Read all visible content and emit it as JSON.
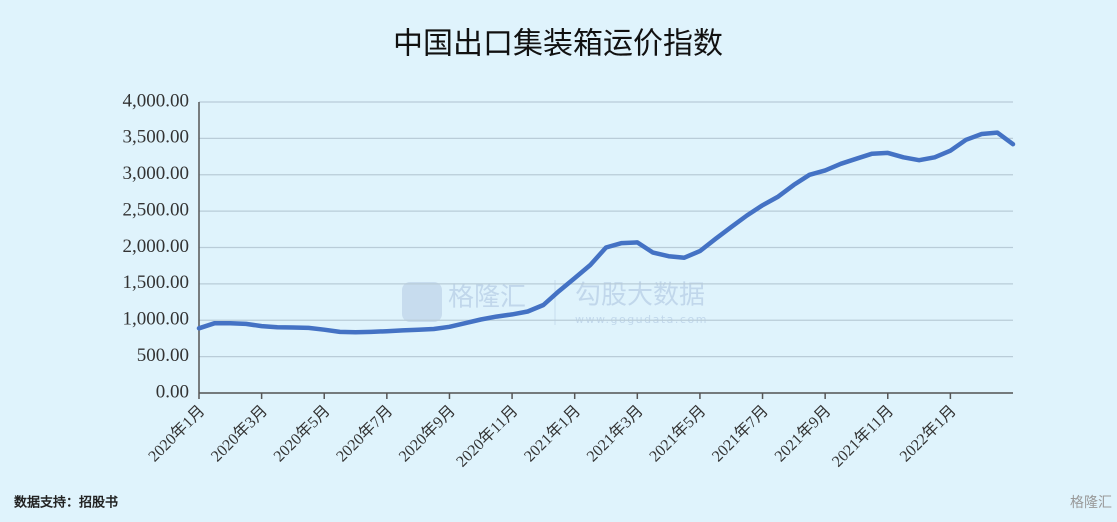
{
  "chart_data": {
    "type": "line",
    "title": "中国出口集装箱运价指数",
    "source": "数据支持：招股书",
    "watermark": {
      "brand": "格隆汇",
      "product": "勾股大数据",
      "url": "www.gogudata.com"
    },
    "corner_logo": "格隆汇",
    "xlim": [
      0,
      26
    ],
    "xticks": [
      {
        "value": 0,
        "label": "2020年1月"
      },
      {
        "value": 2,
        "label": "2020年3月"
      },
      {
        "value": 4,
        "label": "2020年5月"
      },
      {
        "value": 6,
        "label": "2020年7月"
      },
      {
        "value": 8,
        "label": "2020年9月"
      },
      {
        "value": 10,
        "label": "2020年11月"
      },
      {
        "value": 12,
        "label": "2021年1月"
      },
      {
        "value": 14,
        "label": "2021年3月"
      },
      {
        "value": 16,
        "label": "2021年5月"
      },
      {
        "value": 18,
        "label": "2021年7月"
      },
      {
        "value": 20,
        "label": "2021年9月"
      },
      {
        "value": 22,
        "label": "2021年11月"
      },
      {
        "value": 24,
        "label": "2022年1月"
      }
    ],
    "ylim": [
      0,
      4000
    ],
    "yticks": [
      {
        "value": 0,
        "label": "0.00"
      },
      {
        "value": 500,
        "label": "500.00"
      },
      {
        "value": 1000,
        "label": "1,000.00"
      },
      {
        "value": 1500,
        "label": "1,500.00"
      },
      {
        "value": 2000,
        "label": "2,000.00"
      },
      {
        "value": 2500,
        "label": "2,500.00"
      },
      {
        "value": 3000,
        "label": "3,000.00"
      },
      {
        "value": 3500,
        "label": "3,500.00"
      },
      {
        "value": 4000,
        "label": "4,000.00"
      }
    ],
    "grid": true,
    "series": [
      {
        "color": "#4472c4",
        "x": [
          0,
          0.5,
          1,
          1.5,
          2,
          2.5,
          3,
          3.5,
          4,
          4.5,
          5,
          5.5,
          6,
          6.5,
          7,
          7.5,
          8,
          8.5,
          9,
          9.5,
          10,
          10.5,
          11,
          11.5,
          12,
          12.5,
          13,
          13.5,
          14,
          14.5,
          15,
          15.5,
          16,
          16.5,
          17,
          17.5,
          18,
          18.5,
          19,
          19.5,
          20,
          20.5,
          21,
          21.5,
          22,
          22.5,
          23,
          23.5,
          24,
          24.5,
          25,
          25.5,
          26
        ],
        "values": [
          890,
          960,
          960,
          950,
          920,
          905,
          900,
          895,
          870,
          840,
          835,
          840,
          850,
          860,
          870,
          880,
          910,
          960,
          1010,
          1050,
          1080,
          1120,
          1210,
          1400,
          1580,
          1760,
          2000,
          2060,
          2070,
          1930,
          1880,
          1860,
          1950,
          2120,
          2280,
          2440,
          2580,
          2700,
          2860,
          3000,
          3060,
          3150,
          3220,
          3290,
          3300,
          3240,
          3200,
          3240,
          3330,
          3480,
          3560,
          3580,
          3420
        ]
      }
    ]
  }
}
